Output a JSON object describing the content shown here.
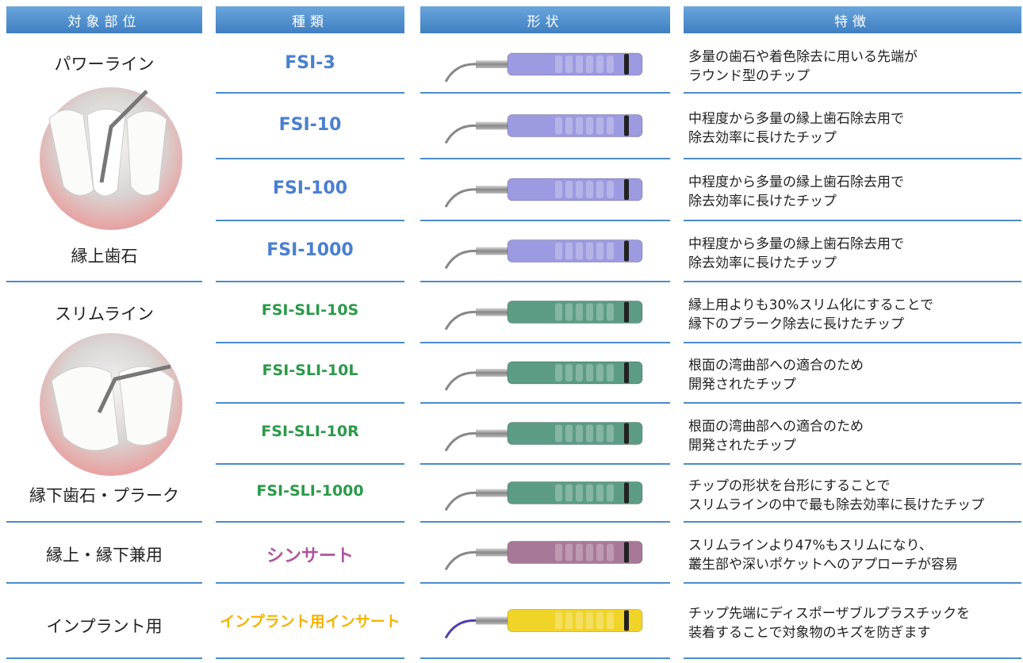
{
  "header": [
    "対象部位",
    "種類",
    "形状",
    "特徴"
  ],
  "groups": [
    {
      "labels": [
        "パワーライン",
        "縁上歯石"
      ]
    },
    {
      "labels": [
        "スリムライン",
        "縁下歯石・プラーク"
      ]
    },
    {
      "labels": [
        "縁上・縁下兼用"
      ]
    },
    {
      "labels": [
        "インプラント用"
      ]
    }
  ],
  "rows": [
    {
      "name": "FSI-3",
      "color": "#4a7fd0",
      "handle": "#9c9ae0",
      "features": [
        "多量の歯石や着色除去に用いる先端が",
        "ラウンド型のチップ"
      ]
    },
    {
      "name": "FSI-10",
      "color": "#4a7fd0",
      "handle": "#9c9ae0",
      "features": [
        "中程度から多量の縁上歯石除去用で",
        "除去効率に長けたチップ"
      ]
    },
    {
      "name": "FSI-100",
      "color": "#4a7fd0",
      "handle": "#9c9ae0",
      "features": [
        "中程度から多量の縁上歯石除去用で",
        "除去効率に長けたチップ"
      ]
    },
    {
      "name": "FSI-1000",
      "color": "#4a7fd0",
      "handle": "#9c9ae0",
      "features": [
        "中程度から多量の縁上歯石除去用で",
        "除去効率に長けたチップ"
      ]
    },
    {
      "name": "FSI-SLI-10S",
      "color": "#2a9a48",
      "handle": "#5c9c84",
      "features": [
        "縁上用よりも30%スリム化にすることで",
        "縁下のプラーク除去に長けたチップ"
      ]
    },
    {
      "name": "FSI-SLI-10L",
      "color": "#2a9a48",
      "handle": "#5c9c84",
      "features": [
        "根面の湾曲部への適合のため",
        "開発されたチップ"
      ]
    },
    {
      "name": "FSI-SLI-10R",
      "color": "#2a9a48",
      "handle": "#5c9c84",
      "features": [
        "根面の湾曲部への適合のため",
        "開発されたチップ"
      ]
    },
    {
      "name": "FSI-SLI-1000",
      "color": "#2a9a48",
      "handle": "#5c9c84",
      "features": [
        "チップの形状を台形にすることで",
        "スリムラインの中で最も除去効率に長けたチップ"
      ]
    },
    {
      "name": "シンサート",
      "color": "#b0559c",
      "handle": "#a87898",
      "features": [
        "スリムラインより47%もスリムになり、",
        "叢生部や深いポケットへのアプローチが容易"
      ]
    },
    {
      "name": "インプラント用インサート",
      "color": "#f5b400",
      "handle": "#f0d428",
      "features": [
        "チップ先端にディスポーザブルプラスチックを",
        "装着することで対象物のキズを防ぎます"
      ]
    }
  ]
}
